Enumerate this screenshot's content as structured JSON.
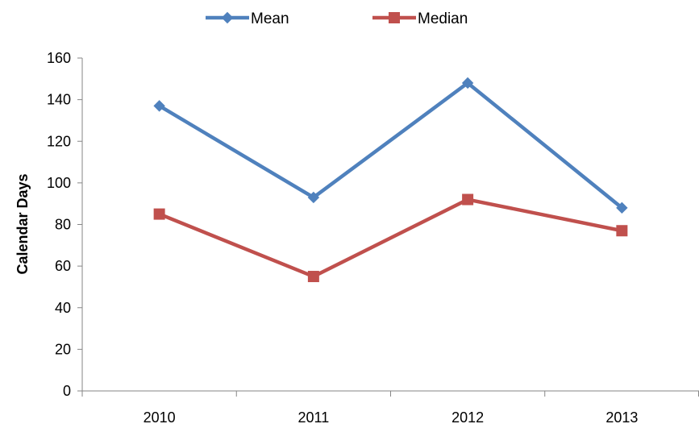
{
  "chart_data": {
    "type": "line",
    "title": "",
    "xlabel": "",
    "ylabel": "Calendar Days",
    "categories": [
      "2010",
      "2011",
      "2012",
      "2013"
    ],
    "ylim": [
      0,
      160
    ],
    "yticks": [
      0,
      20,
      40,
      60,
      80,
      100,
      120,
      140,
      160
    ],
    "grid": false,
    "legend_position": "top",
    "series": [
      {
        "name": "Mean",
        "values": [
          137,
          93,
          148,
          88
        ],
        "color": "#4F81BD",
        "marker": "diamond"
      },
      {
        "name": "Median",
        "values": [
          85,
          55,
          92,
          77
        ],
        "color": "#C0504D",
        "marker": "square"
      }
    ]
  }
}
